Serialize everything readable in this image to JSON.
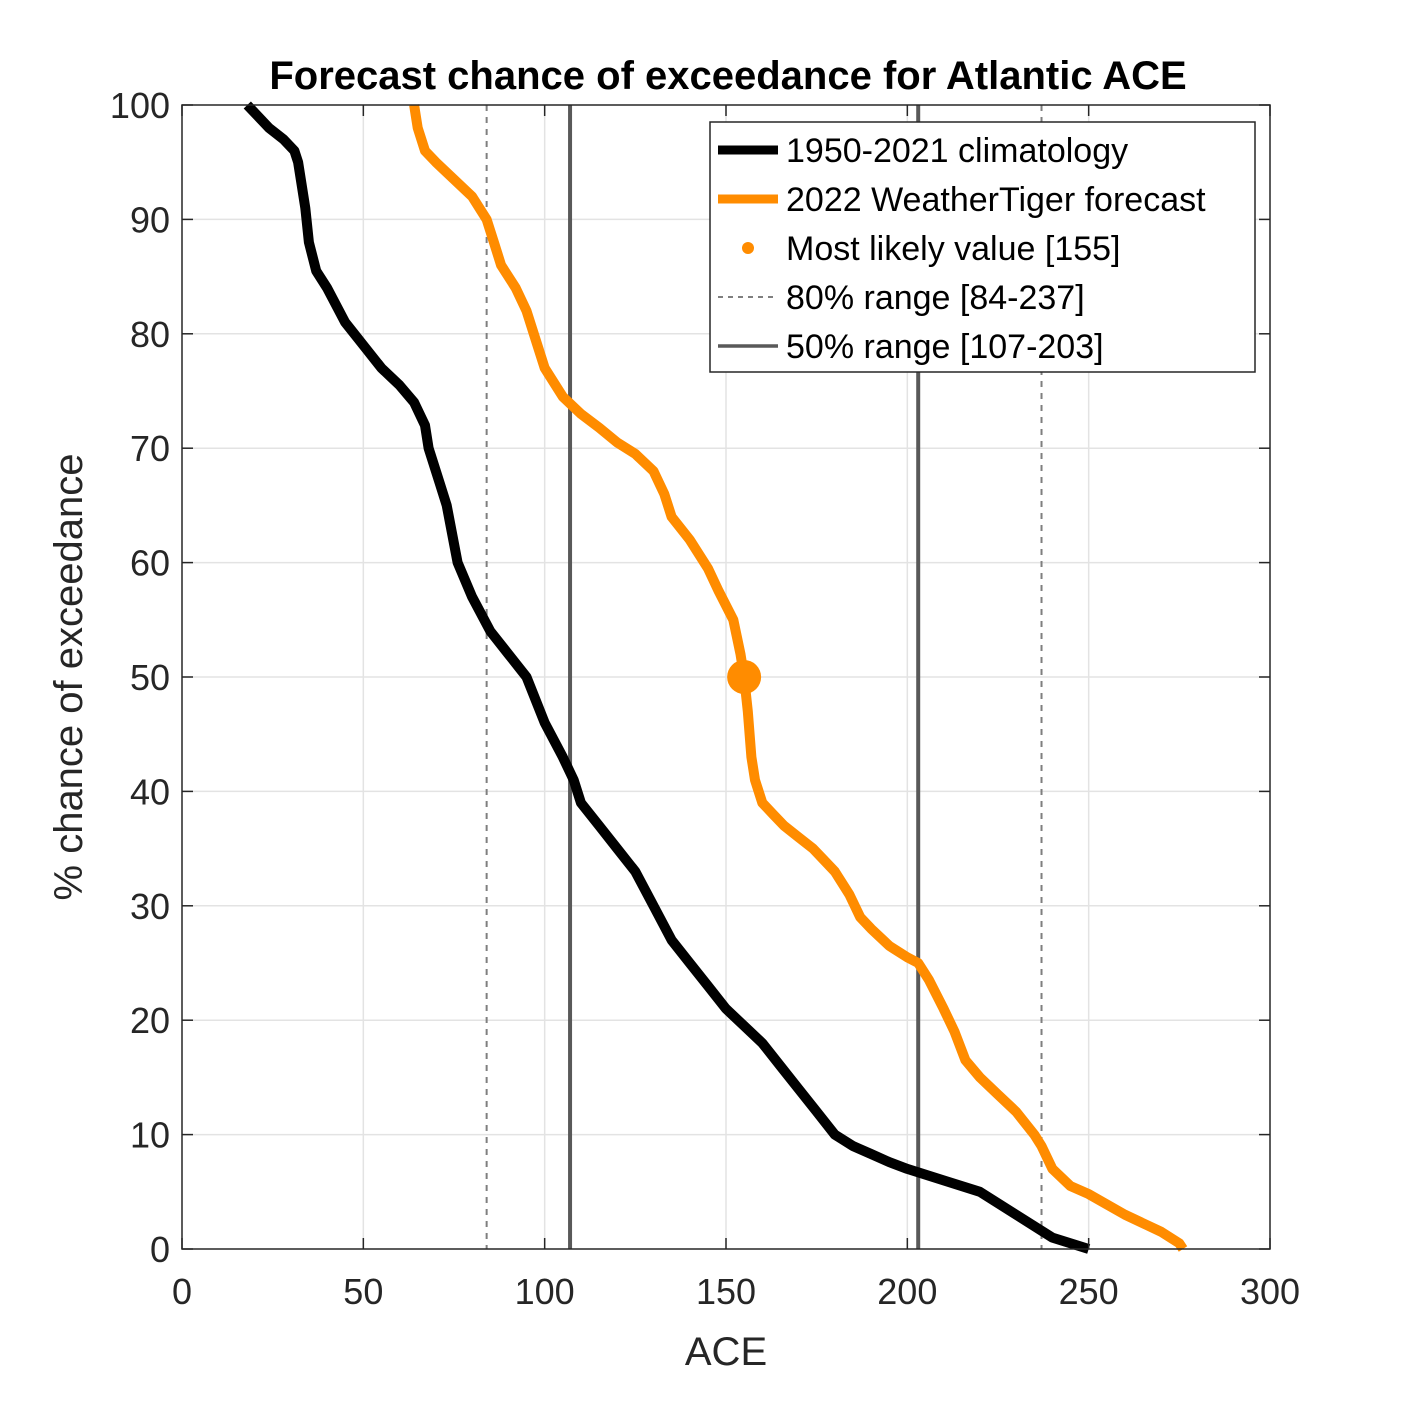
{
  "chart_data": {
    "type": "line",
    "title": "Forecast chance of exceedance for Atlantic ACE",
    "xlabel": "ACE",
    "ylabel": "% chance of exceedance",
    "xlim": [
      0,
      300
    ],
    "ylim": [
      0,
      100
    ],
    "xticks": [
      0,
      50,
      100,
      150,
      200,
      250,
      300
    ],
    "yticks": [
      0,
      10,
      20,
      30,
      40,
      50,
      60,
      70,
      80,
      90,
      100
    ],
    "grid": true,
    "legend_position": "top-right",
    "series": [
      {
        "name": "1950-2021 climatology",
        "color": "#000000",
        "points": [
          [
            18,
            100
          ],
          [
            24,
            98
          ],
          [
            28,
            97
          ],
          [
            31,
            96
          ],
          [
            32,
            95
          ],
          [
            34,
            91
          ],
          [
            35,
            88
          ],
          [
            37,
            85.5
          ],
          [
            40,
            84
          ],
          [
            45,
            81
          ],
          [
            50,
            79
          ],
          [
            55,
            77
          ],
          [
            60,
            75.5
          ],
          [
            64,
            74
          ],
          [
            67,
            72
          ],
          [
            68,
            70
          ],
          [
            71,
            67
          ],
          [
            73,
            65
          ],
          [
            76,
            60
          ],
          [
            80,
            57
          ],
          [
            85,
            54
          ],
          [
            90,
            52
          ],
          [
            95,
            50
          ],
          [
            100,
            46
          ],
          [
            105,
            43
          ],
          [
            108,
            41
          ],
          [
            110,
            39
          ],
          [
            115,
            37
          ],
          [
            120,
            35
          ],
          [
            125,
            33
          ],
          [
            130,
            30
          ],
          [
            135,
            27
          ],
          [
            140,
            25
          ],
          [
            145,
            23
          ],
          [
            150,
            21
          ],
          [
            155,
            19.5
          ],
          [
            160,
            18
          ],
          [
            165,
            16
          ],
          [
            170,
            14
          ],
          [
            175,
            12
          ],
          [
            180,
            10
          ],
          [
            185,
            9
          ],
          [
            190,
            8.3
          ],
          [
            195,
            7.6
          ],
          [
            200,
            7
          ],
          [
            210,
            6
          ],
          [
            220,
            5
          ],
          [
            230,
            3
          ],
          [
            240,
            1
          ],
          [
            250,
            0
          ]
        ]
      },
      {
        "name": "2022 WeatherTiger forecast",
        "color": "#ff8c00",
        "points": [
          [
            64,
            100
          ],
          [
            65,
            98
          ],
          [
            67,
            96
          ],
          [
            70,
            95
          ],
          [
            75,
            93.5
          ],
          [
            80,
            92
          ],
          [
            84,
            90
          ],
          [
            86,
            88
          ],
          [
            88,
            86
          ],
          [
            92,
            84
          ],
          [
            95,
            82
          ],
          [
            98,
            79
          ],
          [
            100,
            77
          ],
          [
            105,
            74.5
          ],
          [
            110,
            73
          ],
          [
            115,
            71.8
          ],
          [
            120,
            70.5
          ],
          [
            125,
            69.5
          ],
          [
            130,
            68
          ],
          [
            133,
            66
          ],
          [
            135,
            64
          ],
          [
            140,
            62
          ],
          [
            145,
            59.5
          ],
          [
            148,
            57.5
          ],
          [
            152,
            55
          ],
          [
            154,
            52
          ],
          [
            155,
            50
          ],
          [
            156,
            47
          ],
          [
            157,
            43
          ],
          [
            158,
            41
          ],
          [
            160,
            39
          ],
          [
            163,
            38
          ],
          [
            166,
            37
          ],
          [
            170,
            36
          ],
          [
            174,
            35
          ],
          [
            177,
            34
          ],
          [
            180,
            33
          ],
          [
            184,
            31
          ],
          [
            187,
            29
          ],
          [
            190,
            28
          ],
          [
            195,
            26.5
          ],
          [
            200,
            25.5
          ],
          [
            203,
            25
          ],
          [
            206,
            23.5
          ],
          [
            210,
            21
          ],
          [
            213,
            19
          ],
          [
            216,
            16.5
          ],
          [
            220,
            15
          ],
          [
            225,
            13.5
          ],
          [
            230,
            12
          ],
          [
            235,
            10
          ],
          [
            237,
            9
          ],
          [
            240,
            7
          ],
          [
            245,
            5.5
          ],
          [
            250,
            4.8
          ],
          [
            260,
            3
          ],
          [
            270,
            1.5
          ],
          [
            275,
            0.5
          ],
          [
            276,
            0
          ]
        ]
      }
    ],
    "most_likely": {
      "label": "Most likely value [155]",
      "x": 155,
      "y": 50,
      "color": "#ff8c00"
    },
    "range_80": {
      "label": "80% range [84-237]",
      "low": 84,
      "high": 237,
      "color": "#7f7f7f"
    },
    "range_50": {
      "label": "50% range [107-203]",
      "low": 107,
      "high": 203,
      "color": "#595959"
    }
  }
}
